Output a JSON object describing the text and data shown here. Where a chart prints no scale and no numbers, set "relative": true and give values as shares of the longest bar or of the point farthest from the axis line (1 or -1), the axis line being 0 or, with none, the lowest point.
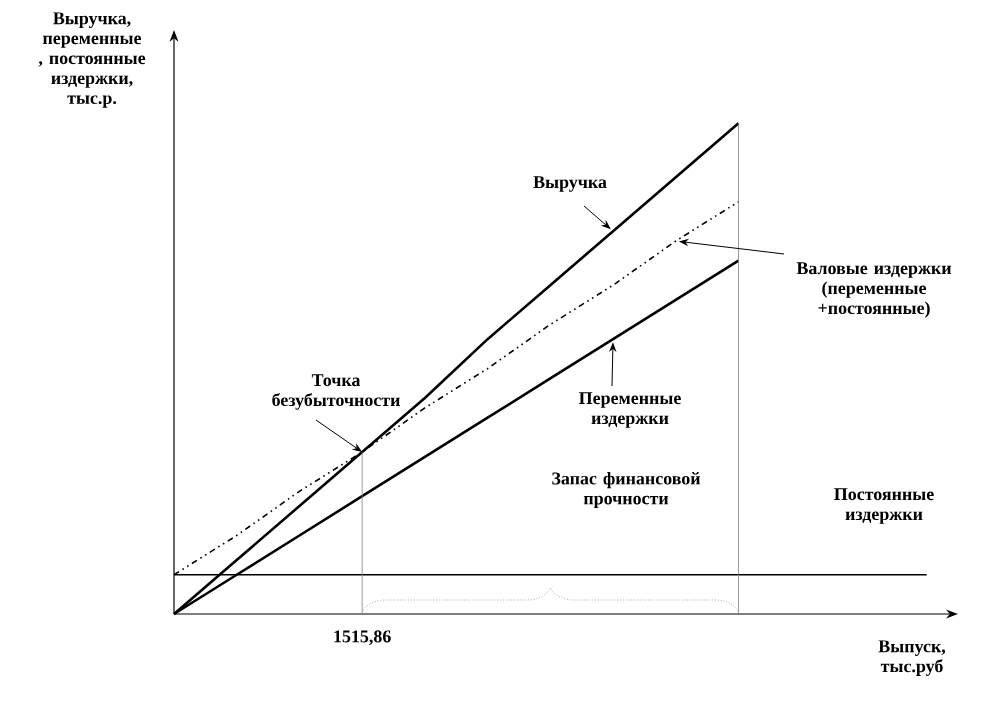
{
  "chart_data": {
    "type": "line",
    "relative": true,
    "xlabel": "Выпуск, тыс.руб",
    "ylabel": "Выручка, переменные , постоянные издержки, тыс.р.",
    "categories": [
      null,
      null,
      null,
      null,
      null,
      null,
      null,
      null,
      null,
      null,
      null,
      null,
      null
    ],
    "marker": "none",
    "series": [
      {
        "name": "Выручка",
        "color": "#000000",
        "values": [
          0,
          0.11,
          0.22,
          0.33,
          0.44,
          0.56,
          0.67,
          0.78,
          0.89,
          1,
          null,
          null,
          null
        ]
      },
      {
        "name": "Валовые издержки (переменные +постоянные)",
        "color": "#000000",
        "values": [
          0.08,
          0.16,
          0.25,
          0.33,
          0.42,
          0.5,
          0.59,
          0.67,
          0.76,
          0.84,
          null,
          null,
          null
        ],
        "line_style": "dashed"
      },
      {
        "name": "Переменные издержки",
        "color": "#000000",
        "values": [
          0,
          0.08,
          0.16,
          0.24,
          0.32,
          0.4,
          0.48,
          0.56,
          0.64,
          0.72,
          null,
          null,
          null
        ]
      },
      {
        "name": "Постоянные издержки",
        "color": "#000000",
        "values": [
          0.08,
          0.08,
          0.08,
          0.08,
          0.08,
          0.08,
          0.08,
          0.08,
          0.08,
          0.08,
          0.08,
          0.08,
          0.08
        ]
      }
    ],
    "annotations": [
      "Точка безубыточности",
      "Запас финансовой прочности",
      "1515,86"
    ]
  }
}
